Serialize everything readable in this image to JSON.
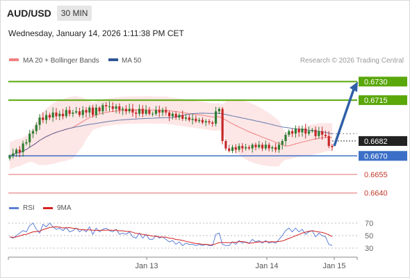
{
  "header": {
    "symbol": "AUD/USD",
    "timeframe": "30 MIN",
    "datetime": "Wednesday, January 14, 2026 1:11:38 PM CET"
  },
  "legend": {
    "items": [
      {
        "label": "MA 20 + Bollinger Bands",
        "color": "#f08080"
      },
      {
        "label": "MA 50",
        "color": "#2f5597"
      }
    ],
    "credit": "Research © 2026 Trading Central"
  },
  "colors": {
    "up_candle": "#2e7d32",
    "down_candle": "#c62828",
    "resistance": "#5aa70a",
    "support": "#3b6fc7",
    "target_down": "#e26b6b",
    "arrow": "#2f5fa7",
    "band_fill": "#fde3e3",
    "rsi": "#5b7fd6",
    "rsi_ma": "#d42020"
  },
  "chart_data": [
    {
      "type": "candlestick",
      "x_ticks": [
        "Jan 13",
        "Jan 14",
        "Jan 15"
      ],
      "ylim": [
        0.6632,
        0.6742
      ],
      "close": [
        0.667,
        0.6672,
        0.6675,
        0.6673,
        0.668,
        0.6681,
        0.6688,
        0.669,
        0.6695,
        0.6701,
        0.6699,
        0.6703,
        0.6701,
        0.6705,
        0.6702,
        0.6704,
        0.6702,
        0.6707,
        0.6704,
        0.6705,
        0.6706,
        0.6703,
        0.6707,
        0.6705,
        0.6709,
        0.6703,
        0.6709,
        0.6706,
        0.6711,
        0.671,
        0.671,
        0.6708,
        0.671,
        0.6707,
        0.6708,
        0.6706,
        0.6708,
        0.6705,
        0.6704,
        0.6708,
        0.6704,
        0.6707,
        0.6704,
        0.6704,
        0.6707,
        0.6705,
        0.6707,
        0.6705,
        0.6702,
        0.6704,
        0.6701,
        0.6703,
        0.67,
        0.6701,
        0.6699,
        0.67,
        0.6698,
        0.6699,
        0.6697,
        0.6698,
        0.6697,
        0.6696,
        0.6706,
        0.6708,
        0.6682,
        0.6676,
        0.6674,
        0.6677,
        0.6675,
        0.6678,
        0.6676,
        0.6677,
        0.6676,
        0.6679,
        0.6677,
        0.6679,
        0.6676,
        0.6679,
        0.6676,
        0.6677,
        0.6675,
        0.6679,
        0.6682,
        0.6687,
        0.669,
        0.6688,
        0.6692,
        0.6689,
        0.6692,
        0.6688,
        0.669,
        0.6691,
        0.6686,
        0.669,
        0.6687,
        0.6686,
        0.6678,
        0.6677
      ],
      "resistance": [
        0.6715,
        0.673
      ],
      "support": [
        0.667
      ],
      "targets_down": [
        0.6655,
        0.664
      ],
      "current_price": 0.6682,
      "labels": [
        "0.6730",
        "0.6715",
        "0.6682",
        "0.6670",
        "0.6655",
        "0.6640"
      ],
      "projection": {
        "from": 0.6678,
        "to": 0.673
      }
    },
    {
      "type": "line",
      "name": "RSI",
      "ma_name": "9MA",
      "ylim": [
        20,
        80
      ],
      "y_ticks": [
        70,
        50,
        30
      ],
      "values": [
        48,
        46,
        50,
        54,
        58,
        56,
        66,
        70,
        60,
        54,
        68,
        64,
        70,
        64,
        60,
        62,
        58,
        63,
        56,
        58,
        62,
        56,
        60,
        56,
        64,
        52,
        62,
        56,
        60,
        62,
        58,
        56,
        60,
        52,
        54,
        52,
        56,
        48,
        46,
        54,
        46,
        52,
        44,
        44,
        50,
        46,
        48,
        44,
        40,
        42,
        36,
        40,
        34,
        38,
        36,
        36,
        34,
        36,
        34,
        36,
        34,
        34,
        52,
        54,
        36,
        34,
        34,
        40,
        36,
        42,
        38,
        40,
        38,
        44,
        40,
        42,
        38,
        42,
        38,
        40,
        38,
        44,
        50,
        58,
        62,
        56,
        62,
        56,
        60,
        52,
        56,
        58,
        48,
        54,
        50,
        48,
        36,
        34
      ]
    }
  ]
}
